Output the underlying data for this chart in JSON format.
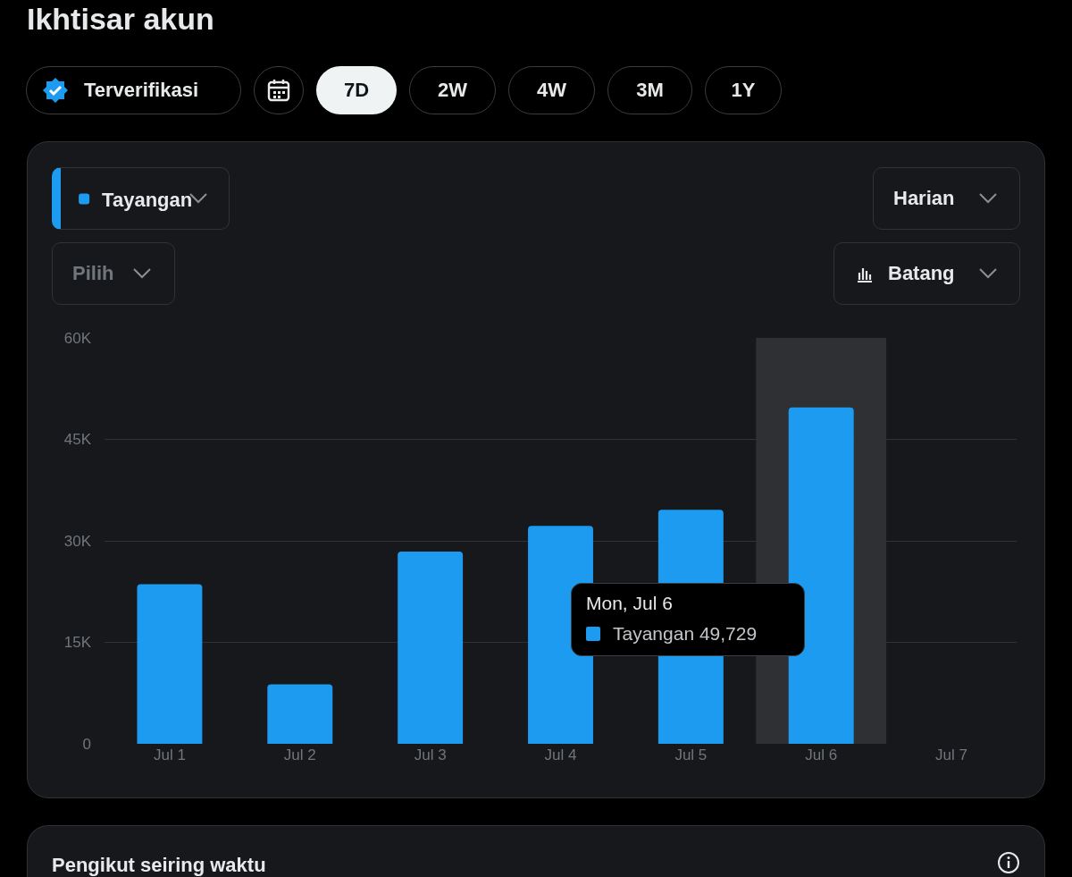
{
  "chart_data": {
    "type": "bar",
    "title": "Ikhtisar akun",
    "categories": [
      "Jul 1",
      "Jul 2",
      "Jul 3",
      "Jul 4",
      "Jul 5",
      "Jul 6",
      "Jul 7"
    ],
    "series": [
      {
        "name": "Tayangan",
        "color": "#1d9bf0",
        "values": [
          23600,
          8800,
          28400,
          32200,
          34600,
          49729,
          null
        ]
      }
    ],
    "ylim": [
      0,
      60000
    ],
    "yticks": [
      {
        "value": 0,
        "label": "0"
      },
      {
        "value": 15000,
        "label": "15K"
      },
      {
        "value": 30000,
        "label": "30K"
      },
      {
        "value": 45000,
        "label": "45K"
      },
      {
        "value": 60000,
        "label": "60K"
      }
    ],
    "grid": "y",
    "legend": "top left",
    "bands": [
      {
        "axis": "x",
        "from": "Jul 6",
        "to": "Jul 6",
        "color": "#2f3034"
      }
    ],
    "annotations": [
      "Terverifikasi",
      "7D",
      "2W",
      "4W",
      "3M",
      "1Y",
      "Harian",
      "Pilih",
      "Batang",
      "Pengikut seiring waktu",
      "Mon, Jul 6",
      "Tayangan 49,729"
    ]
  }
}
